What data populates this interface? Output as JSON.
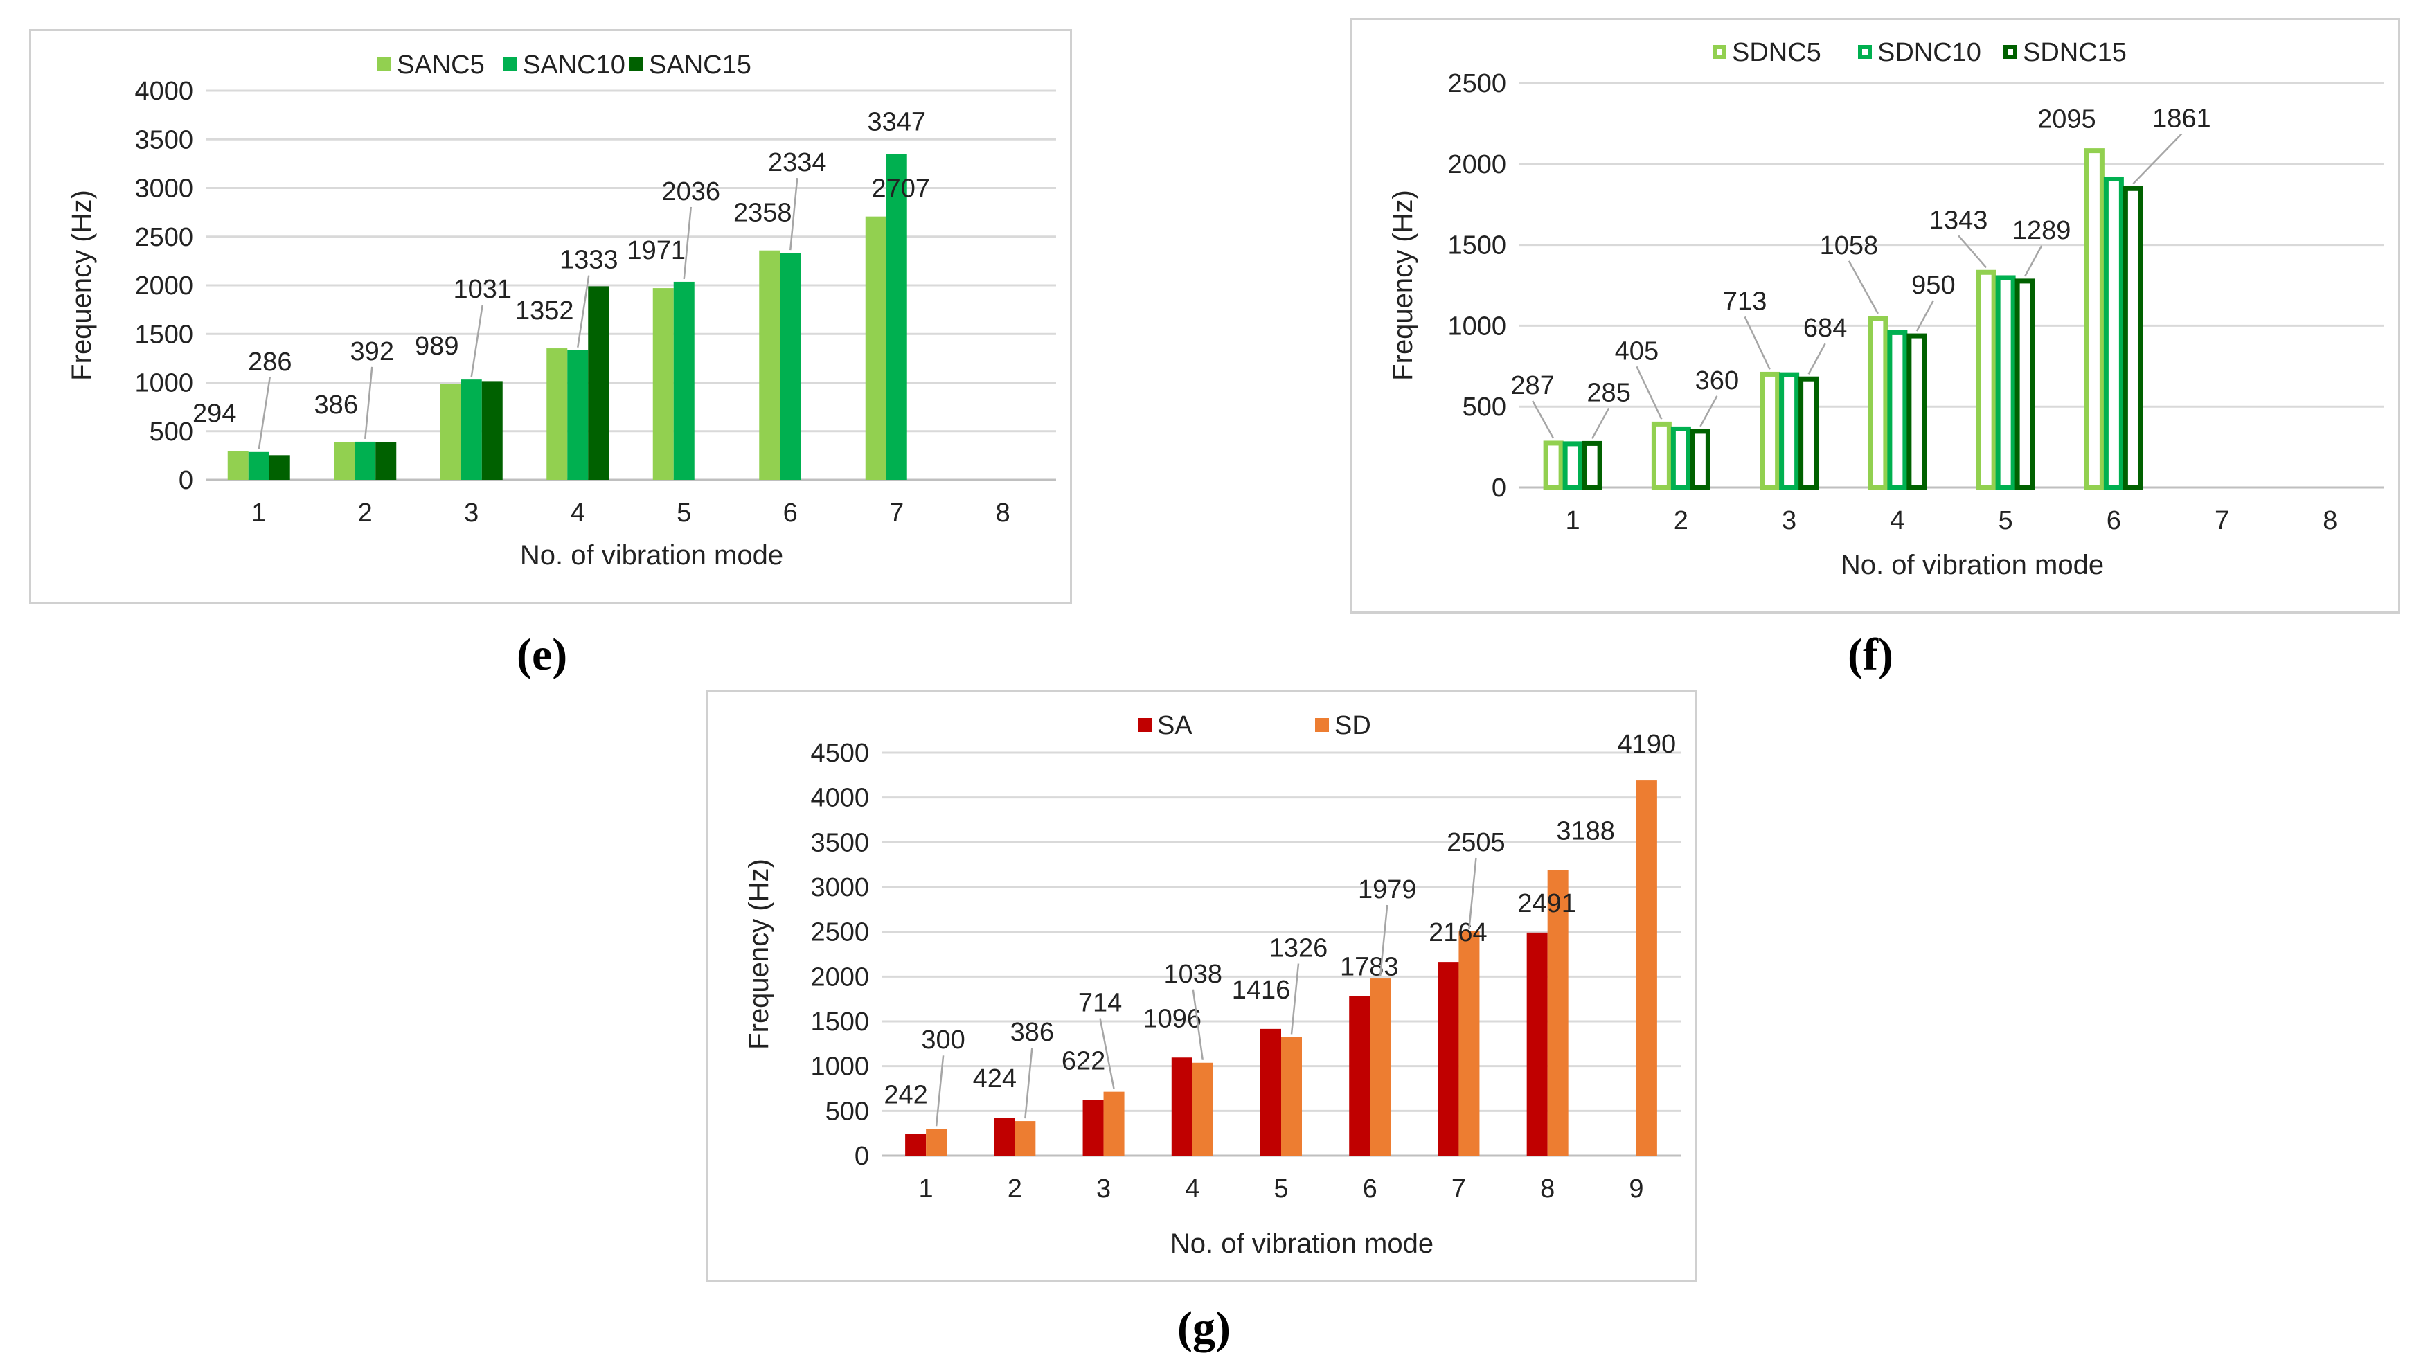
{
  "panel_labels": {
    "e": "(e)",
    "f": "(f)",
    "g": "(g)"
  },
  "chart_data": [
    {
      "id": "e",
      "type": "bar",
      "title": "",
      "xlabel": "No. of  vibration mode",
      "ylabel": "Frequency (Hz)",
      "ylim": [
        0,
        4000
      ],
      "yticks": [
        0,
        500,
        1000,
        1500,
        2000,
        2500,
        3000,
        3500,
        4000
      ],
      "categories": [
        "1",
        "2",
        "3",
        "4",
        "5",
        "6",
        "7",
        "8"
      ],
      "legend_position": "top",
      "bar_style": "filled",
      "series": [
        {
          "name": "SANC5",
          "color": "#92d050",
          "values": [
            294,
            386,
            989,
            1352,
            1971,
            2358,
            2707,
            null
          ]
        },
        {
          "name": "SANC10",
          "color": "#00b050",
          "values": [
            286,
            392,
            1031,
            1333,
            2036,
            2334,
            3347,
            null
          ]
        },
        {
          "name": "SANC15",
          "color": "#006100",
          "values": [
            254,
            386,
            1015,
            1990,
            null,
            null,
            null,
            null
          ]
        }
      ],
      "data_labels": [
        {
          "text": "294",
          "series": 0,
          "index": 0
        },
        {
          "text": "286",
          "series": 1,
          "index": 0
        },
        {
          "text": "386",
          "series": 0,
          "index": 1
        },
        {
          "text": "392",
          "series": 1,
          "index": 1
        },
        {
          "text": "989",
          "series": 0,
          "index": 2
        },
        {
          "text": "1031",
          "series": 1,
          "index": 2
        },
        {
          "text": "1352",
          "series": 0,
          "index": 3
        },
        {
          "text": "1333",
          "series": 1,
          "index": 3
        },
        {
          "text": "1971",
          "series": 0,
          "index": 4
        },
        {
          "text": "2036",
          "series": 1,
          "index": 4
        },
        {
          "text": "2358",
          "series": 0,
          "index": 5
        },
        {
          "text": "2334",
          "series": 1,
          "index": 5
        },
        {
          "text": "2707",
          "series": 0,
          "index": 6
        },
        {
          "text": "3347",
          "series": 1,
          "index": 6
        }
      ]
    },
    {
      "id": "f",
      "type": "bar",
      "title": "",
      "xlabel": "No. of  vibration mode",
      "ylabel": "Frequency (Hz)",
      "ylim": [
        0,
        2500
      ],
      "yticks": [
        0,
        500,
        1000,
        1500,
        2000,
        2500
      ],
      "categories": [
        "1",
        "2",
        "3",
        "4",
        "5",
        "6",
        "7",
        "8"
      ],
      "legend_position": "top",
      "bar_style": "outline",
      "series": [
        {
          "name": "SDNC5",
          "color": "#92d050",
          "values": [
            287,
            405,
            713,
            1058,
            1343,
            2095,
            null,
            null
          ]
        },
        {
          "name": "SDNC10",
          "color": "#00b050",
          "values": [
            283,
            375,
            710,
            970,
            1310,
            1920,
            null,
            null
          ]
        },
        {
          "name": "SDNC15",
          "color": "#006100",
          "values": [
            285,
            360,
            684,
            950,
            1289,
            1861,
            null,
            null
          ]
        }
      ],
      "data_labels": [
        {
          "text": "287",
          "series": 0,
          "index": 0
        },
        {
          "text": "285",
          "series": 2,
          "index": 0
        },
        {
          "text": "405",
          "series": 0,
          "index": 1
        },
        {
          "text": "360",
          "series": 2,
          "index": 1
        },
        {
          "text": "713",
          "series": 0,
          "index": 2
        },
        {
          "text": "684",
          "series": 2,
          "index": 2
        },
        {
          "text": "1058",
          "series": 0,
          "index": 3
        },
        {
          "text": "950",
          "series": 2,
          "index": 3
        },
        {
          "text": "1343",
          "series": 0,
          "index": 4
        },
        {
          "text": "1289",
          "series": 2,
          "index": 4
        },
        {
          "text": "2095",
          "series": 0,
          "index": 5
        },
        {
          "text": "1861",
          "series": 2,
          "index": 5
        }
      ]
    },
    {
      "id": "g",
      "type": "bar",
      "title": "",
      "xlabel": "No. of  vibration mode",
      "ylabel": "Frequency (Hz)",
      "ylim": [
        0,
        4500
      ],
      "yticks": [
        0,
        500,
        1000,
        1500,
        2000,
        2500,
        3000,
        3500,
        4000,
        4500
      ],
      "categories": [
        "1",
        "2",
        "3",
        "4",
        "5",
        "6",
        "7",
        "8",
        "9"
      ],
      "legend_position": "top",
      "bar_style": "filled",
      "series": [
        {
          "name": "SA",
          "color": "#c00000",
          "values": [
            242,
            424,
            622,
            1096,
            1416,
            1783,
            2164,
            2491,
            null
          ]
        },
        {
          "name": "SD",
          "color": "#ed7d31",
          "values": [
            300,
            386,
            714,
            1038,
            1326,
            1979,
            2505,
            3188,
            4190
          ]
        }
      ],
      "data_labels": [
        {
          "text": "242",
          "series": 0,
          "index": 0
        },
        {
          "text": "300",
          "series": 1,
          "index": 0
        },
        {
          "text": "424",
          "series": 0,
          "index": 1
        },
        {
          "text": "386",
          "series": 1,
          "index": 1
        },
        {
          "text": "622",
          "series": 0,
          "index": 2
        },
        {
          "text": "714",
          "series": 1,
          "index": 2
        },
        {
          "text": "1096",
          "series": 0,
          "index": 3
        },
        {
          "text": "1038",
          "series": 1,
          "index": 3
        },
        {
          "text": "1416",
          "series": 0,
          "index": 4
        },
        {
          "text": "1326",
          "series": 1,
          "index": 4
        },
        {
          "text": "1783",
          "series": 0,
          "index": 5
        },
        {
          "text": "1979",
          "series": 1,
          "index": 5
        },
        {
          "text": "2164",
          "series": 0,
          "index": 6
        },
        {
          "text": "2505",
          "series": 1,
          "index": 6
        },
        {
          "text": "2491",
          "series": 0,
          "index": 7
        },
        {
          "text": "3188",
          "series": 1,
          "index": 7
        },
        {
          "text": "4190",
          "series": 1,
          "index": 8
        }
      ]
    }
  ]
}
